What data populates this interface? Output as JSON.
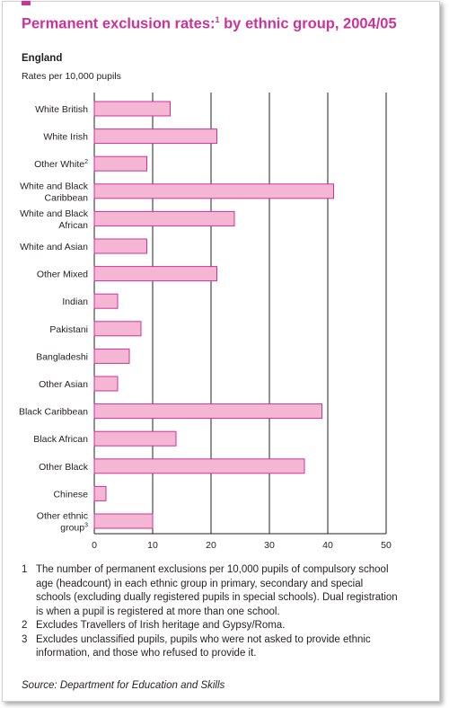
{
  "header": {
    "title": "Permanent exclusion rates:",
    "title_sup": "1",
    "title_tail": " by ethnic group, 2004/05",
    "subtitle": "England",
    "units": "Rates per 10,000 pupils"
  },
  "colors": {
    "bar_fill": "#f4b6d2",
    "bar_stroke": "#cc3399",
    "title": "#cc3399",
    "axis": "#231f20"
  },
  "chart_data": {
    "type": "bar",
    "orientation": "horizontal",
    "categories": [
      {
        "lines": [
          "White British"
        ],
        "sup": ""
      },
      {
        "lines": [
          "White Irish"
        ],
        "sup": ""
      },
      {
        "lines": [
          "Other White"
        ],
        "sup": "2"
      },
      {
        "lines": [
          "White and Black",
          "Caribbean"
        ],
        "sup": ""
      },
      {
        "lines": [
          "White and Black",
          "African"
        ],
        "sup": ""
      },
      {
        "lines": [
          "White and Asian"
        ],
        "sup": ""
      },
      {
        "lines": [
          "Other Mixed"
        ],
        "sup": ""
      },
      {
        "lines": [
          "Indian"
        ],
        "sup": ""
      },
      {
        "lines": [
          "Pakistani"
        ],
        "sup": ""
      },
      {
        "lines": [
          "Bangladeshi"
        ],
        "sup": ""
      },
      {
        "lines": [
          "Other Asian"
        ],
        "sup": ""
      },
      {
        "lines": [
          "Black Caribbean"
        ],
        "sup": ""
      },
      {
        "lines": [
          "Black African"
        ],
        "sup": ""
      },
      {
        "lines": [
          "Other Black"
        ],
        "sup": ""
      },
      {
        "lines": [
          "Chinese"
        ],
        "sup": ""
      },
      {
        "lines": [
          "Other ethnic",
          "group"
        ],
        "sup": "3"
      }
    ],
    "values": [
      13,
      21,
      9,
      41,
      24,
      9,
      21,
      4,
      8,
      6,
      4,
      39,
      14,
      36,
      2,
      10
    ],
    "xlim": [
      0,
      50
    ],
    "xticks": [
      0,
      10,
      20,
      30,
      40,
      50
    ],
    "grid": true,
    "legend": "none"
  },
  "notes": [
    {
      "num": "1",
      "text": "The number of permanent exclusions per 10,000 pupils of compulsory school age (headcount) in each ethnic group in primary, secondary and special schools (excluding dually registered pupils in special schools). Dual registration is when a pupil is registered at more than one school."
    },
    {
      "num": "2",
      "text": "Excludes Travellers of Irish heritage and Gypsy/Roma."
    },
    {
      "num": "3",
      "text": "Excludes unclassified pupils, pupils who were not asked to provide ethnic information, and those who refused to provide it."
    }
  ],
  "source": "Source: Department for Education and Skills"
}
